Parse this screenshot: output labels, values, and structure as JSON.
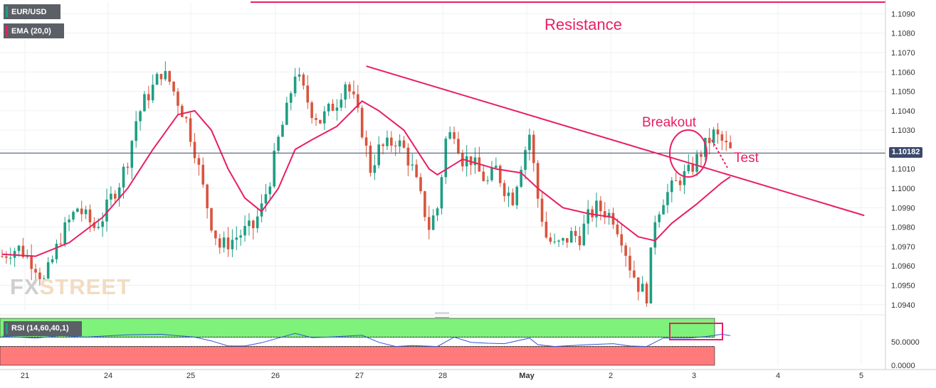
{
  "colors": {
    "bull": "#1e9e83",
    "bear": "#d9543d",
    "ema": "#e91e63",
    "annotation": "#e91e63",
    "price_line": "#3b4a6b",
    "rsi_line": "#2f57d6",
    "rsi_upper_zone": "#7ef27b",
    "rsi_lower_zone": "#ff7b7b",
    "badge_bg": "#5b5f66",
    "watermark": "#d9d9d9"
  },
  "header": {
    "symbol": "EUR/USD",
    "indicator": "EMA (20,0)",
    "symbol_icon": "green-bar-marker",
    "indicator_icon": "pink-bar-marker"
  },
  "watermark": {
    "brand_a": "FX",
    "brand_b": "STREET"
  },
  "price_badge": "1.10182",
  "rsi_panel": {
    "label": "RSI (14,60,40,1)",
    "ticks": [
      "50.0000",
      "0.0000"
    ]
  },
  "annotations": {
    "resistance": "Resistance",
    "breakout": "Breakout",
    "test": "Test"
  },
  "chart_data": {
    "type": "candlestick",
    "title": "",
    "symbol": "EUR/USD",
    "timeframe_note": "hourly candles, Apr 20 – May 3",
    "x_labels": [
      "21",
      "24",
      "25",
      "26",
      "27",
      "28",
      "May",
      "2",
      "3",
      "4",
      "5"
    ],
    "y_ticks": [
      "1.1090",
      "1.1080",
      "1.1070",
      "1.1060",
      "1.1050",
      "1.1040",
      "1.1030",
      "1.1020",
      "1.1010",
      "1.1000",
      "1.0990",
      "1.0980",
      "1.0970",
      "1.0960",
      "1.0950",
      "1.0940"
    ],
    "ylim": [
      1.0937,
      1.1096
    ],
    "current_price": 1.10182,
    "close_path": [
      [
        0,
        1.0965
      ],
      [
        2,
        1.0968
      ],
      [
        4,
        1.0969
      ],
      [
        6,
        1.0965
      ],
      [
        8,
        1.096
      ],
      [
        10,
        1.0952
      ],
      [
        12,
        1.0963
      ],
      [
        14,
        1.0975
      ],
      [
        16,
        1.0983
      ],
      [
        18,
        1.099
      ],
      [
        20,
        1.0985
      ],
      [
        22,
        1.098
      ],
      [
        24,
        1.0985
      ],
      [
        26,
        1.0995
      ],
      [
        28,
        1.1003
      ],
      [
        30,
        1.1015
      ],
      [
        32,
        1.1035
      ],
      [
        34,
        1.1045
      ],
      [
        36,
        1.1052
      ],
      [
        38,
        1.106
      ],
      [
        40,
        1.1055
      ],
      [
        42,
        1.1045
      ],
      [
        44,
        1.1035
      ],
      [
        46,
        1.102
      ],
      [
        48,
        1.1
      ],
      [
        50,
        1.0982
      ],
      [
        52,
        1.097
      ],
      [
        54,
        1.0972
      ],
      [
        56,
        1.0975
      ],
      [
        58,
        1.0978
      ],
      [
        60,
        1.098
      ],
      [
        62,
        1.099
      ],
      [
        64,
        1.1005
      ],
      [
        66,
        1.1025
      ],
      [
        68,
        1.104
      ],
      [
        70,
        1.106
      ],
      [
        72,
        1.105
      ],
      [
        74,
        1.104
      ],
      [
        76,
        1.1035
      ],
      [
        78,
        1.104
      ],
      [
        80,
        1.1045
      ],
      [
        82,
        1.1055
      ],
      [
        84,
        1.1045
      ],
      [
        86,
        1.103
      ],
      [
        88,
        1.101
      ],
      [
        90,
        1.102
      ],
      [
        92,
        1.1022
      ],
      [
        94,
        1.1025
      ],
      [
        96,
        1.102
      ],
      [
        98,
        1.101
      ],
      [
        100,
        1.0995
      ],
      [
        102,
        1.098
      ],
      [
        104,
        1.099
      ],
      [
        106,
        1.1025
      ],
      [
        108,
        1.103
      ],
      [
        110,
        1.1015
      ],
      [
        112,
        1.1015
      ],
      [
        114,
        1.1008
      ],
      [
        116,
        1.1003
      ],
      [
        118,
        1.101
      ],
      [
        120,
        1.1
      ],
      [
        122,
        1.0995
      ],
      [
        124,
        1.1013
      ],
      [
        126,
        1.1028
      ],
      [
        128,
        1.0995
      ],
      [
        130,
        1.0975
      ],
      [
        132,
        1.097
      ],
      [
        134,
        1.0972
      ],
      [
        136,
        1.0976
      ],
      [
        138,
        1.0975
      ],
      [
        140,
        1.0985
      ],
      [
        142,
        1.099
      ],
      [
        144,
        1.0988
      ],
      [
        146,
        1.0985
      ],
      [
        148,
        1.0975
      ],
      [
        150,
        1.096
      ],
      [
        152,
        1.095
      ],
      [
        154,
        1.0945
      ],
      [
        156,
        1.0985
      ],
      [
        158,
        1.0995
      ],
      [
        160,
        1.1
      ],
      [
        162,
        1.1005
      ],
      [
        164,
        1.1008
      ],
      [
        166,
        1.1015
      ],
      [
        168,
        1.1022
      ],
      [
        170,
        1.1028
      ],
      [
        172,
        1.1024
      ],
      [
        174,
        1.1019
      ]
    ],
    "ema_20": [
      [
        0,
        1.0966
      ],
      [
        8,
        1.0965
      ],
      [
        16,
        1.0972
      ],
      [
        24,
        1.0985
      ],
      [
        30,
        1.1
      ],
      [
        36,
        1.102
      ],
      [
        42,
        1.1038
      ],
      [
        46,
        1.104
      ],
      [
        50,
        1.103
      ],
      [
        54,
        1.101
      ],
      [
        58,
        1.0995
      ],
      [
        62,
        1.0988
      ],
      [
        66,
        1.1
      ],
      [
        70,
        1.102
      ],
      [
        74,
        1.1025
      ],
      [
        80,
        1.1032
      ],
      [
        86,
        1.1045
      ],
      [
        90,
        1.104
      ],
      [
        96,
        1.103
      ],
      [
        102,
        1.101
      ],
      [
        104,
        1.1007
      ],
      [
        110,
        1.1015
      ],
      [
        118,
        1.101
      ],
      [
        124,
        1.1008
      ],
      [
        128,
        1.1
      ],
      [
        134,
        1.099
      ],
      [
        140,
        1.0987
      ],
      [
        146,
        1.0985
      ],
      [
        152,
        1.0975
      ],
      [
        156,
        1.0973
      ],
      [
        160,
        1.0982
      ],
      [
        166,
        1.0992
      ],
      [
        172,
        1.1003
      ],
      [
        174,
        1.1006
      ]
    ],
    "resistance_level": 1.1096,
    "trendline": {
      "from": [
        87,
        1.1063
      ],
      "to": [
        206,
        1.0986
      ]
    },
    "rsi": {
      "upper": 60,
      "lower": 40,
      "ylim": [
        0,
        100
      ],
      "points": [
        [
          0,
          62
        ],
        [
          8,
          58
        ],
        [
          14,
          63
        ],
        [
          20,
          60
        ],
        [
          30,
          65
        ],
        [
          38,
          66
        ],
        [
          46,
          60
        ],
        [
          50,
          52
        ],
        [
          54,
          41
        ],
        [
          58,
          41
        ],
        [
          62,
          48
        ],
        [
          66,
          58
        ],
        [
          70,
          68
        ],
        [
          74,
          59
        ],
        [
          78,
          60
        ],
        [
          86,
          64
        ],
        [
          90,
          49
        ],
        [
          94,
          40
        ],
        [
          98,
          42
        ],
        [
          104,
          40
        ],
        [
          108,
          60
        ],
        [
          112,
          49
        ],
        [
          116,
          47
        ],
        [
          120,
          46
        ],
        [
          126,
          58
        ],
        [
          128,
          44
        ],
        [
          132,
          40
        ],
        [
          136,
          42
        ],
        [
          140,
          44
        ],
        [
          146,
          46
        ],
        [
          150,
          41
        ],
        [
          154,
          40
        ],
        [
          158,
          58
        ],
        [
          164,
          58
        ],
        [
          168,
          61
        ],
        [
          172,
          66
        ],
        [
          174,
          63
        ]
      ]
    }
  }
}
